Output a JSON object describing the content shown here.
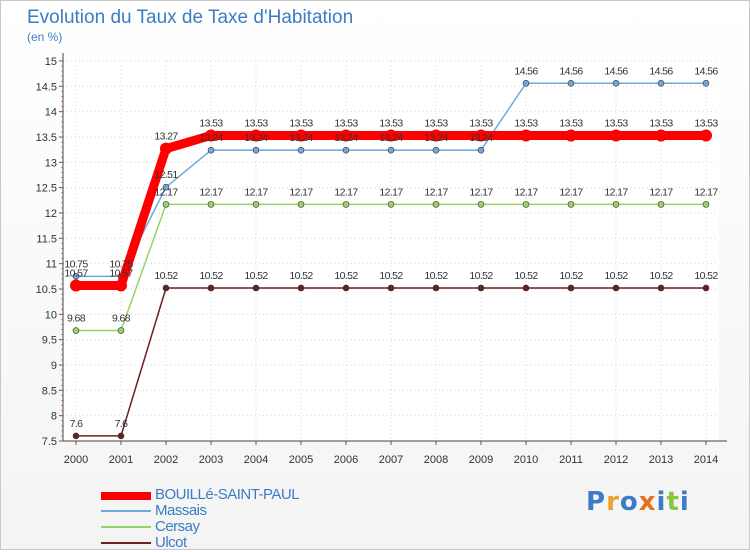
{
  "title": "Evolution du Taux de Taxe d'Habitation",
  "unit": "(en %)",
  "brand": "Proxiti",
  "chart_data": {
    "type": "line",
    "title": "Evolution du Taux de Taxe d'Habitation",
    "ylabel": "(en %)",
    "xlabel": "",
    "ylim": [
      7.5,
      15
    ],
    "yticks": [
      "7.5",
      "8",
      "8.5",
      "9",
      "9.5",
      "10",
      "10.5",
      "11",
      "11.5",
      "12",
      "12.5",
      "13",
      "13.5",
      "14",
      "14.5",
      "15"
    ],
    "categories": [
      "2000",
      "2001",
      "2002",
      "2003",
      "2004",
      "2005",
      "2006",
      "2007",
      "2008",
      "2009",
      "2010",
      "2011",
      "2012",
      "2013",
      "2014"
    ],
    "series": [
      {
        "name": "BOUILLé-SAINT-PAUL",
        "color": "#ff0000",
        "values": [
          10.57,
          10.57,
          13.27,
          13.53,
          13.53,
          13.53,
          13.53,
          13.53,
          13.53,
          13.53,
          13.53,
          13.53,
          13.53,
          13.53,
          13.53
        ],
        "labels": [
          "10.57",
          "10.57",
          "13.27",
          "13.53",
          "13.53",
          "13.53",
          "13.53",
          "13.53",
          "13.53",
          "13.53",
          "13.53",
          "13.53",
          "13.53",
          "13.53",
          "13.53"
        ]
      },
      {
        "name": "Massais",
        "color": "#6fa8dc",
        "values": [
          10.75,
          10.75,
          12.51,
          13.24,
          13.24,
          13.24,
          13.24,
          13.24,
          13.24,
          13.24,
          14.56,
          14.56,
          14.56,
          14.56,
          14.56
        ],
        "labels": [
          "10.75",
          "10.75",
          "12.51",
          "13.24",
          "13.24",
          "13.24",
          "13.24",
          "13.24",
          "13.24",
          "13.24",
          "14.56",
          "14.56",
          "14.56",
          "14.56",
          "14.56"
        ]
      },
      {
        "name": "Cersay",
        "color": "#93d36a",
        "values": [
          9.68,
          9.68,
          12.17,
          12.17,
          12.17,
          12.17,
          12.17,
          12.17,
          12.17,
          12.17,
          12.17,
          12.17,
          12.17,
          12.17,
          12.17
        ],
        "labels": [
          "9.68",
          "9.68",
          "12.17",
          "12.17",
          "12.17",
          "12.17",
          "12.17",
          "12.17",
          "12.17",
          "12.17",
          "12.17",
          "12.17",
          "12.17",
          "12.17",
          "12.17"
        ]
      },
      {
        "name": "Ulcot",
        "color": "#6b1f1f",
        "values": [
          7.6,
          7.6,
          10.52,
          10.52,
          10.52,
          10.52,
          10.52,
          10.52,
          10.52,
          10.52,
          10.52,
          10.52,
          10.52,
          10.52,
          10.52
        ],
        "labels": [
          "7.6",
          "7.6",
          "10.52",
          "10.52",
          "10.52",
          "10.52",
          "10.52",
          "10.52",
          "10.52",
          "10.52",
          "10.52",
          "10.52",
          "10.52",
          "10.52",
          "10.52"
        ]
      }
    ]
  }
}
